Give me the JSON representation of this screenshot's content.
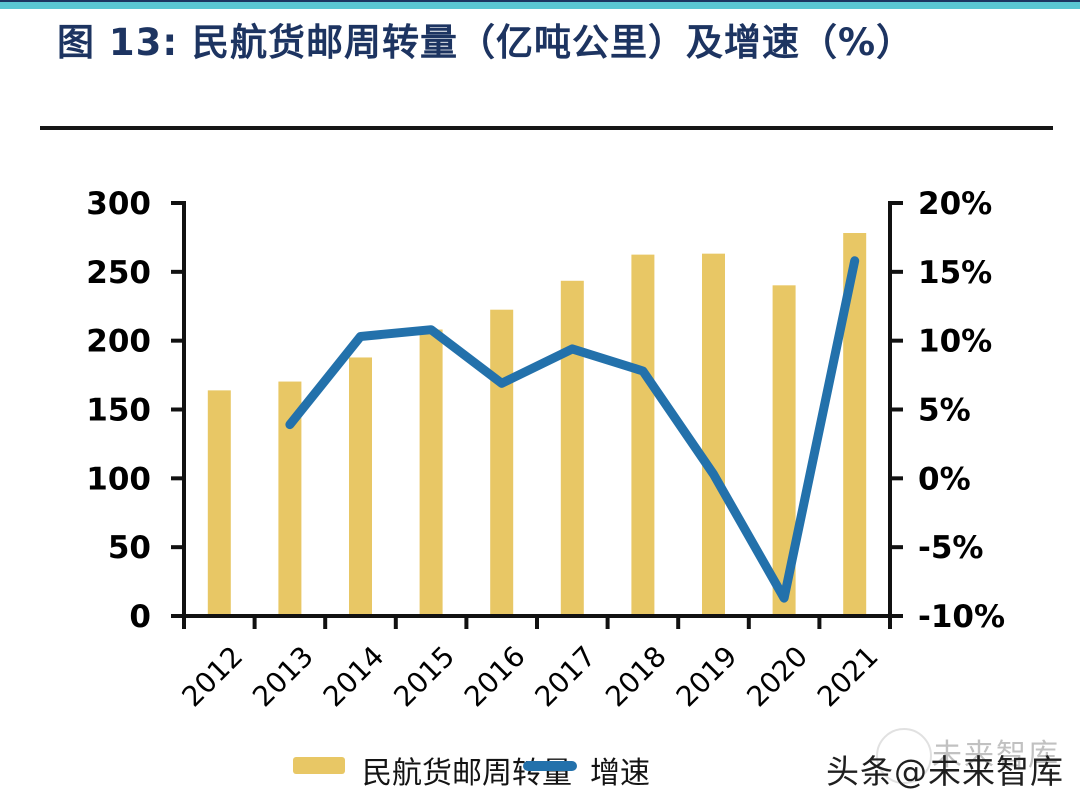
{
  "page": {
    "top_strip_color": "#5ac6d3",
    "background_color": "#ffffff",
    "title_color": "#1d3461"
  },
  "header": {
    "title": "图 13: 民航货邮周转量（亿吨公里）及增速（%）"
  },
  "legend": {
    "items": [
      {
        "label": "民航货邮周转量",
        "swatch": "bar",
        "color": "#e8c765"
      },
      {
        "label": "增速",
        "swatch": "line",
        "color": "#2371ab"
      }
    ]
  },
  "watermark": {
    "text": "头条@未来智库",
    "ghost_text": "未来智库"
  },
  "chart_data": {
    "type": "bar",
    "subtype": "bar+line dual axis",
    "title": "民航货邮周转量（亿吨公里）及增速（%）",
    "categories": [
      "2012",
      "2013",
      "2014",
      "2015",
      "2016",
      "2017",
      "2018",
      "2019",
      "2020",
      "2021"
    ],
    "series": [
      {
        "name": "民航货邮周转量",
        "type": "bar",
        "axis": "left",
        "color": "#e8c765",
        "values": [
          163.9,
          170.3,
          187.8,
          208.1,
          222.5,
          243.5,
          262.5,
          263.2,
          240.2,
          278.2
        ]
      },
      {
        "name": "增速",
        "type": "line",
        "axis": "right",
        "color": "#2371ab",
        "values": [
          null,
          3.9,
          10.3,
          10.8,
          6.9,
          9.4,
          7.8,
          0.3,
          -8.7,
          15.8
        ]
      }
    ],
    "left_axis": {
      "min": 0,
      "max": 300,
      "step": 50,
      "tick_labels": [
        "0",
        "50",
        "100",
        "150",
        "200",
        "250",
        "300"
      ]
    },
    "right_axis": {
      "min": -10,
      "max": 20,
      "step": 5,
      "tick_labels": [
        "-10%",
        "-5%",
        "0%",
        "5%",
        "10%",
        "15%",
        "20%"
      ]
    },
    "x_axis": {
      "label_rotation_deg": -45
    },
    "grid": "off",
    "legend_position": "bottom",
    "axis_color": "#111111",
    "tick_label_color": "#000000"
  }
}
